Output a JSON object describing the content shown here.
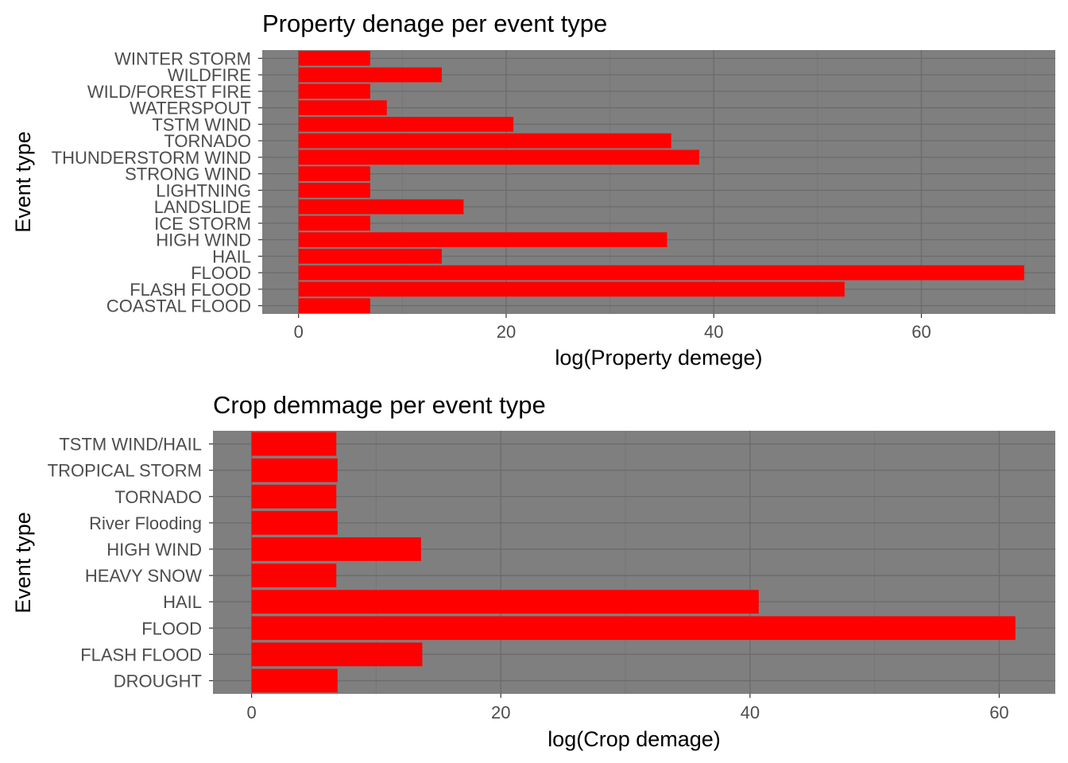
{
  "colors": {
    "panel": "#7f7f7f",
    "grid_major": "#6b6b6b",
    "grid_minor": "#767676",
    "bar": "#ff0000",
    "tick": "#333333"
  },
  "chart_data": [
    {
      "type": "bar",
      "orientation": "horizontal",
      "title": "Property denage per event type",
      "xlabel": "log(Property demege)",
      "ylabel": "Event type",
      "xlim": [
        -3.5,
        72.9
      ],
      "xticks": [
        0,
        20,
        40,
        60
      ],
      "categories": [
        "WINTER STORM",
        "WILDFIRE",
        "WILD/FOREST FIRE",
        "WATERSPOUT",
        "TSTM WIND",
        "TORNADO",
        "THUNDERSTORM WIND",
        "STRONG WIND",
        "LIGHTNING",
        "LANDSLIDE",
        "ICE STORM",
        "HIGH WIND",
        "HAIL",
        "FLOOD",
        "FLASH FLOOD",
        "COASTAL FLOOD"
      ],
      "values": [
        6.9,
        13.8,
        6.9,
        8.5,
        20.7,
        35.9,
        38.6,
        6.9,
        6.9,
        15.9,
        6.9,
        35.5,
        13.8,
        69.9,
        52.6,
        6.9
      ]
    },
    {
      "type": "bar",
      "orientation": "horizontal",
      "title": "Crop demmage per event type",
      "xlabel": "log(Crop demage)",
      "ylabel": "Event type",
      "xlim": [
        -3.1,
        64.5
      ],
      "xticks": [
        0,
        20,
        40,
        60
      ],
      "categories": [
        "TSTM WIND/HAIL",
        "TROPICAL STORM",
        "TORNADO",
        "River Flooding",
        "HIGH WIND",
        "HEAVY SNOW",
        "HAIL",
        "FLOOD",
        "FLASH FLOOD",
        "DROUGHT"
      ],
      "values": [
        6.8,
        6.9,
        6.8,
        6.9,
        13.6,
        6.8,
        40.7,
        61.3,
        13.7,
        6.9
      ]
    }
  ]
}
